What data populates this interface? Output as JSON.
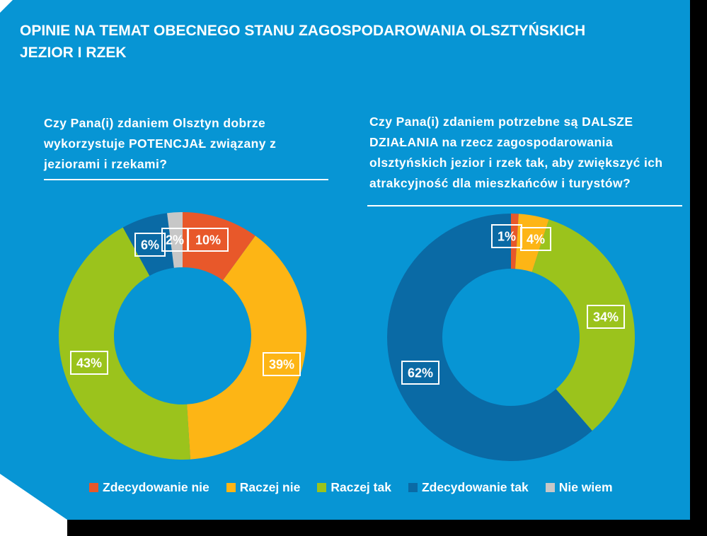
{
  "title": "OPINIE NA TEMAT OBECNEGO STANU ZAGOSPODAROWANIA OLSZTYŃSKICH JEZIOR I RZEK",
  "colors": {
    "background": "#0795d4",
    "zdecydowanie_nie": "#e8582a",
    "raczej_nie": "#fdb515",
    "raczej_tak": "#9bc31c",
    "zdecydowanie_tak": "#0a6aa5",
    "nie_wiem": "#c7c7c7"
  },
  "legend": [
    {
      "label": "Zdecydowanie nie",
      "color": "#e8582a"
    },
    {
      "label": "Raczej nie",
      "color": "#fdb515"
    },
    {
      "label": "Raczej tak",
      "color": "#9bc31c"
    },
    {
      "label": "Zdecydowanie tak",
      "color": "#0a6aa5"
    },
    {
      "label": "Nie wiem",
      "color": "#c7c7c7"
    }
  ],
  "chart_data": [
    {
      "type": "pie",
      "title": "Czy Pana(i) zdaniem Olsztyn dobrze wykorzystuje POTENCJAŁ związany z jeziorami i rzekami?",
      "categories": [
        "Zdecydowanie nie",
        "Raczej nie",
        "Raczej tak",
        "Zdecydowanie tak",
        "Nie wiem"
      ],
      "values": [
        10,
        39,
        43,
        6,
        2
      ],
      "labels": [
        "10%",
        "39%",
        "43%",
        "6%",
        "2%"
      ],
      "colors": [
        "#e8582a",
        "#fdb515",
        "#9bc31c",
        "#0a6aa5",
        "#c7c7c7"
      ],
      "donut": true,
      "legend": "bottom"
    },
    {
      "type": "pie",
      "title": "Czy Pana(i) zdaniem potrzebne są DALSZE DZIAŁANIA na rzecz zagospodarowania olsztyńskich jezior i rzek tak, aby zwiększyć ich atrakcyjność dla mieszkańców i turystów?",
      "categories": [
        "Zdecydowanie nie",
        "Raczej nie",
        "Raczej tak",
        "Zdecydowanie tak"
      ],
      "values": [
        1,
        4,
        34,
        62
      ],
      "labels": [
        "1%",
        "4%",
        "34%",
        "62%"
      ],
      "colors": [
        "#e8582a",
        "#fdb515",
        "#9bc31c",
        "#0a6aa5"
      ],
      "donut": true,
      "legend": "bottom"
    }
  ]
}
